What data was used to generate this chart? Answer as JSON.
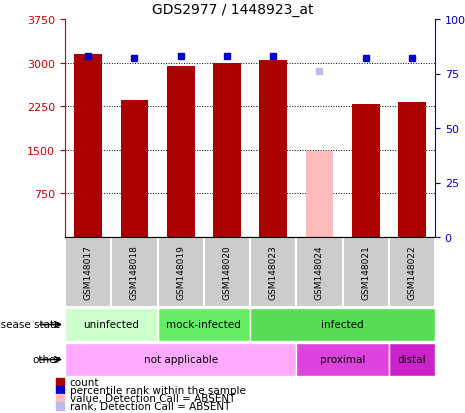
{
  "title": "GDS2977 / 1448923_at",
  "samples": [
    "GSM148017",
    "GSM148018",
    "GSM148019",
    "GSM148020",
    "GSM148023",
    "GSM148024",
    "GSM148021",
    "GSM148022"
  ],
  "counts": [
    3150,
    2350,
    2950,
    3000,
    3050,
    1480,
    2280,
    2320
  ],
  "percentile_ranks": [
    83,
    82,
    83,
    83,
    83,
    76,
    82,
    82
  ],
  "absent": [
    false,
    false,
    false,
    false,
    false,
    true,
    false,
    false
  ],
  "bar_color_normal": "#aa0000",
  "bar_color_absent": "#ffbbbb",
  "dot_color_normal": "#0000cc",
  "dot_color_absent": "#bbbbee",
  "ylim_left": [
    0,
    3750
  ],
  "ylim_right": [
    0,
    100
  ],
  "yticks_left": [
    750,
    1500,
    2250,
    3000,
    3750
  ],
  "yticks_right": [
    0,
    25,
    50,
    75,
    100
  ],
  "disease_data": [
    {
      "label": "uninfected",
      "start": 0,
      "end": 2,
      "color": "#ccffcc"
    },
    {
      "label": "mock-infected",
      "start": 2,
      "end": 4,
      "color": "#66ee66"
    },
    {
      "label": "infected",
      "start": 4,
      "end": 8,
      "color": "#55dd55"
    }
  ],
  "other_data": [
    {
      "label": "not applicable",
      "start": 0,
      "end": 5,
      "color": "#ffaaff"
    },
    {
      "label": "proximal",
      "start": 5,
      "end": 7,
      "color": "#dd44dd"
    },
    {
      "label": "distal",
      "start": 7,
      "end": 8,
      "color": "#cc22cc"
    }
  ],
  "legend_items": [
    {
      "label": "count",
      "color": "#aa0000"
    },
    {
      "label": "percentile rank within the sample",
      "color": "#0000cc"
    },
    {
      "label": "value, Detection Call = ABSENT",
      "color": "#ffbbbb"
    },
    {
      "label": "rank, Detection Call = ABSENT",
      "color": "#bbbbee"
    }
  ],
  "label_color_left": "#cc0000",
  "label_color_right": "#0000cc",
  "grid_yticks": [
    750,
    1500,
    2250,
    3000
  ]
}
